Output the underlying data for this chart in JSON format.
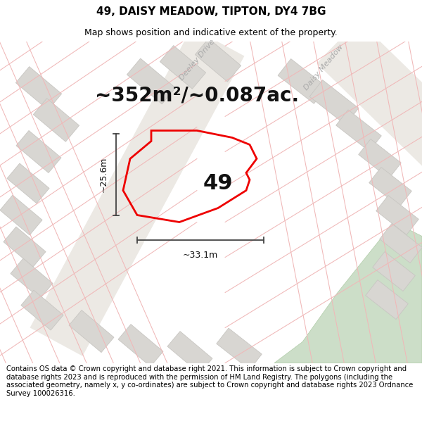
{
  "title": "49, DAISY MEADOW, TIPTON, DY4 7BG",
  "subtitle": "Map shows position and indicative extent of the property.",
  "area_text": "~352m²/~0.087ac.",
  "label_49": "49",
  "dim_width": "~33.1m",
  "dim_height": "~25.6m",
  "footer_text": "Contains OS data © Crown copyright and database right 2021. This information is subject to Crown copyright and database rights 2023 and is reproduced with the permission of HM Land Registry. The polygons (including the associated geometry, namely x, y co-ordinates) are subject to Crown copyright and database rights 2023 Ordnance Survey 100026316.",
  "bg_color": "#f5f4f2",
  "map_bg": "#f7f6f4",
  "footer_bg": "#ffffff",
  "property_edge": "#ee0000",
  "road_line_color": "#f0b8b8",
  "road_fill": "#ece9e4",
  "building_fill": "#d8d6d2",
  "building_edge": "#c8c6c2",
  "green_area": "#ccdec8",
  "green_edge": "#b0cca8",
  "dim_line_color": "#444444",
  "title_fontsize": 11,
  "subtitle_fontsize": 9,
  "area_fontsize": 20,
  "label_fontsize": 22,
  "footer_fontsize": 7.2,
  "road_label_color": "#aaaaaa",
  "road_label_fontsize": 8
}
